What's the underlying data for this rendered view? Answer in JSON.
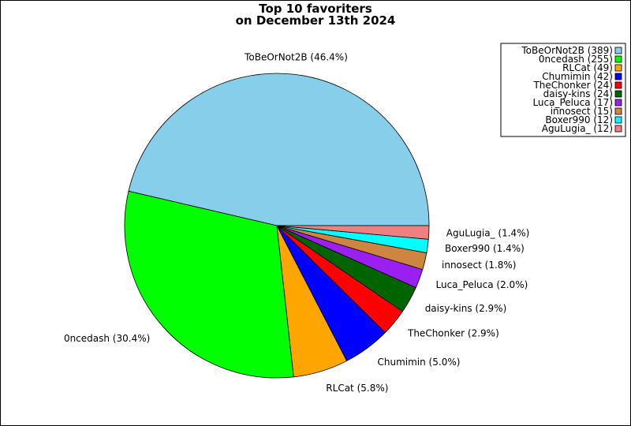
{
  "chart_data": {
    "type": "pie",
    "title_lines": [
      "Top 10 favoriters",
      "on December 13th 2024"
    ],
    "start_angle_deg": 0,
    "direction": "counterclockwise",
    "legend_placement": "top-right",
    "slices": [
      {
        "name": "ToBeOrNot2B",
        "value": 389,
        "percent_label": "ToBeOrNot2B (46.4%)",
        "legend_label": "ToBeOrNot2B (389)",
        "color": "#87ceeb"
      },
      {
        "name": "0ncedash",
        "value": 255,
        "percent_label": "0ncedash (30.4%)",
        "legend_label": "0ncedash (255)",
        "color": "#00ff00"
      },
      {
        "name": "RLCat",
        "value": 49,
        "percent_label": "RLCat (5.8%)",
        "legend_label": "RLCat (49)",
        "color": "#ffa500"
      },
      {
        "name": "Chumimin",
        "value": 42,
        "percent_label": "Chumimin (5.0%)",
        "legend_label": "Chumimin (42)",
        "color": "#0000ff"
      },
      {
        "name": "TheChonker",
        "value": 24,
        "percent_label": "TheChonker (2.9%)",
        "legend_label": "TheChonker (24)",
        "color": "#ff0000"
      },
      {
        "name": "daisy-kins",
        "value": 24,
        "percent_label": "daisy-kins (2.9%)",
        "legend_label": "daisy-kins (24)",
        "color": "#006400"
      },
      {
        "name": "Luca_Peluca",
        "value": 17,
        "percent_label": "Luca_Peluca (2.0%)",
        "legend_label": "Luca_Peluca (17)",
        "color": "#9b1ff0"
      },
      {
        "name": "innosect",
        "value": 15,
        "percent_label": "innosect (1.8%)",
        "legend_label": "innosect (15)",
        "color": "#cd853f"
      },
      {
        "name": "Boxer990",
        "value": 12,
        "percent_label": "Boxer990 (1.4%)",
        "legend_label": "Boxer990 (12)",
        "color": "#00ffff"
      },
      {
        "name": "AguLugia_",
        "value": 12,
        "percent_label": "AguLugia_ (1.4%)",
        "legend_label": "AguLugia_ (12)",
        "color": "#f08080"
      }
    ]
  }
}
